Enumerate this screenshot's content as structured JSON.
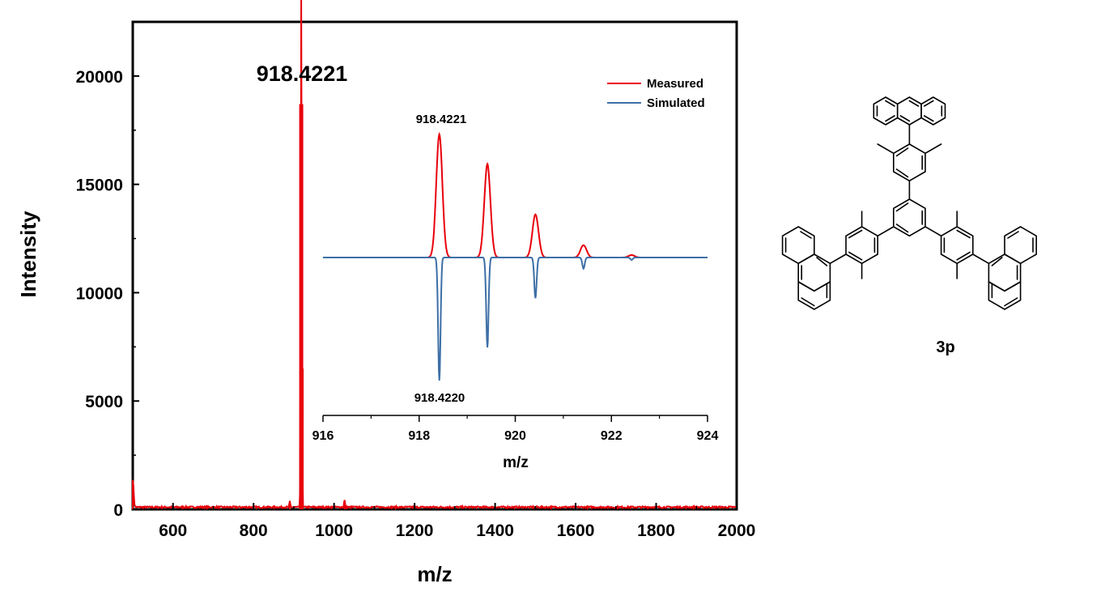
{
  "chart_data": [
    {
      "type": "line",
      "xlabel": "m/z",
      "ylabel": "Intensity",
      "xlim": [
        500,
        2000
      ],
      "ylim": [
        0,
        22500
      ],
      "xticks": [
        600,
        800,
        1000,
        1200,
        1400,
        1600,
        1800,
        2000
      ],
      "yticks": [
        0,
        5000,
        10000,
        15000,
        20000
      ],
      "xtick_labels": [
        "600",
        "800",
        "1000",
        "1200",
        "1400",
        "1600",
        "1800",
        "2000"
      ],
      "ytick_labels": [
        "0",
        "5000",
        "10000",
        "15000",
        "20000"
      ],
      "grid": false,
      "series": [
        {
          "color": "#e8000b",
          "peaks": [
            {
              "x": 500,
              "y": 1300
            },
            {
              "x": 890,
              "y": 250
            },
            {
              "x": 918.4221,
              "y": 18700
            },
            {
              "x": 919.4,
              "y": 6500
            },
            {
              "x": 1026,
              "y": 350
            }
          ],
          "baseline": 100
        }
      ],
      "annotations": [
        {
          "text": "918.4221",
          "x": 918.4221
        }
      ]
    },
    {
      "type": "line",
      "xlabel": "m/z",
      "xlim": [
        916,
        924
      ],
      "xticks": [
        916,
        918,
        920,
        922,
        924
      ],
      "xtick_labels": [
        "916",
        "918",
        "920",
        "922",
        "924"
      ],
      "legend_position": "top-right",
      "series": [
        {
          "name": "Measured",
          "color": "#e8000b",
          "direction": "up",
          "peaks": [
            {
              "x": 918.42,
              "y": 1.0
            },
            {
              "x": 919.42,
              "y": 0.76
            },
            {
              "x": 920.42,
              "y": 0.35
            },
            {
              "x": 921.42,
              "y": 0.1
            },
            {
              "x": 922.42,
              "y": 0.02
            }
          ]
        },
        {
          "name": "Simulated",
          "color": "#3d6fa6",
          "direction": "down",
          "peaks": [
            {
              "x": 918.42,
              "y": 1.0
            },
            {
              "x": 919.42,
              "y": 0.73
            },
            {
              "x": 920.42,
              "y": 0.33
            },
            {
              "x": 921.42,
              "y": 0.09
            },
            {
              "x": 922.42,
              "y": 0.02
            }
          ]
        }
      ],
      "annotations": [
        {
          "text": "918.4221",
          "series": "Measured"
        },
        {
          "text": "918.4220",
          "series": "Simulated"
        }
      ]
    }
  ],
  "structure": {
    "label": "3p"
  }
}
